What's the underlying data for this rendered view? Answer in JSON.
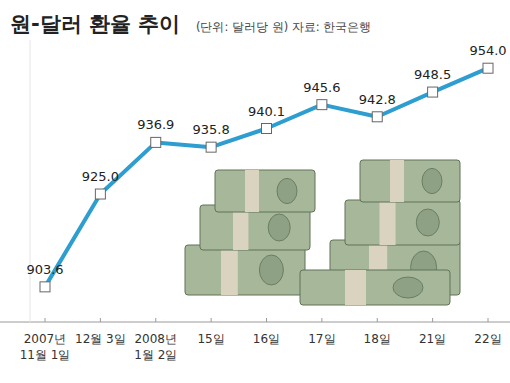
{
  "chart_data": {
    "type": "line",
    "title": "원-달러 환율 추이",
    "subtitle": "(단위: 달러당 원) 자료: 한국은행",
    "categories": [
      "2007년 11월 1일",
      "12월 3일",
      "2008년 1월 2일",
      "15일",
      "16일",
      "17일",
      "18일",
      "21일",
      "22일"
    ],
    "values": [
      903.6,
      925.0,
      936.9,
      935.8,
      940.1,
      945.6,
      942.8,
      948.5,
      954.0
    ],
    "value_labels": [
      "903.6",
      "925.0",
      "936.9",
      "935.8",
      "940.1",
      "945.6",
      "942.8",
      "948.5",
      "954.0"
    ],
    "color": "#2e9dcf",
    "marker": "square",
    "ylim": [
      895.5,
      960.5
    ],
    "data_labels": true,
    "tick_labels": "x",
    "grid": false
  }
}
